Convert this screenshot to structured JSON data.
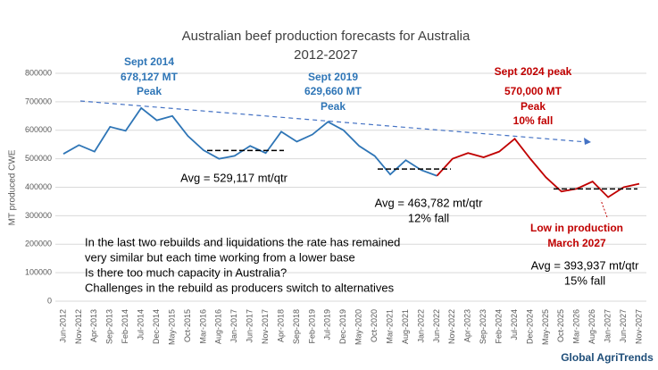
{
  "chart_data": {
    "type": "line",
    "title": "Australian beef production forecasts for Australia",
    "subtitle": "2012-2027",
    "ylabel": "MT produced CWE",
    "categories": [
      "Jun-2012",
      "Nov-2012",
      "Apr-2013",
      "Sep-2013",
      "Feb-2014",
      "Jul-2014",
      "Dec-2014",
      "May-2015",
      "Oct-2015",
      "Mar-2016",
      "Aug-2016",
      "Jan-2017",
      "Jun-2017",
      "Nov-2017",
      "Apr-2018",
      "Sep-2018",
      "Feb-2019",
      "Jul-2019",
      "Dec-2019",
      "May-2020",
      "Oct-2020",
      "Mar-2021",
      "Aug-2021",
      "Jan-2022",
      "Jun-2022",
      "Nov-2022",
      "Apr-2023",
      "Sep-2023",
      "Feb-2024",
      "Jul-2024",
      "Dec-2024",
      "May-2025",
      "Oct-2025",
      "Mar-2026",
      "Aug-2026",
      "Jan-2027",
      "Jun-2027",
      "Nov-2027"
    ],
    "series": [
      {
        "color": "#2e75b6",
        "values": [
          517000,
          548000,
          525000,
          612000,
          598000,
          678127,
          635000,
          650000,
          580000,
          530000,
          500000,
          510000,
          545000,
          520000,
          595000,
          560000,
          585000,
          629660,
          600000,
          545000,
          510000,
          445000,
          495000,
          460000,
          440000,
          null,
          null,
          null,
          null,
          null,
          null,
          null,
          null,
          null,
          null,
          null,
          null,
          null
        ]
      },
      {
        "color": "#c00000",
        "values": [
          null,
          null,
          null,
          null,
          null,
          null,
          null,
          null,
          null,
          null,
          null,
          null,
          null,
          null,
          null,
          null,
          null,
          null,
          null,
          null,
          null,
          null,
          null,
          null,
          440000,
          500000,
          520000,
          505000,
          525000,
          570000,
          500000,
          435000,
          385000,
          395000,
          420000,
          365000,
          400000,
          412000
        ]
      }
    ],
    "ylim": [
      0,
      820000
    ],
    "yticks": [
      0,
      100000,
      200000,
      300000,
      400000,
      500000,
      600000,
      700000,
      800000
    ],
    "grid": true,
    "reference_lines": [
      {
        "value": 529117
      },
      {
        "value": 463782
      },
      {
        "value": 393937
      }
    ],
    "annotations": [
      {
        "text": "Sept 2014",
        "color": "#2e75b6"
      },
      {
        "text": "678,127 MT",
        "color": "#2e75b6"
      },
      {
        "text": "Peak",
        "color": "#2e75b6"
      },
      {
        "text": "Sept 2019",
        "color": "#2e75b6"
      },
      {
        "text": "629,660 MT",
        "color": "#2e75b6"
      },
      {
        "text": "Peak",
        "color": "#2e75b6"
      },
      {
        "text": "Sept 2024 peak",
        "color": "#c00000"
      },
      {
        "text": "570,000 MT",
        "color": "#c00000"
      },
      {
        "text": "Peak",
        "color": "#c00000"
      },
      {
        "text": "10% fall",
        "color": "#c00000"
      },
      {
        "text": "Avg = 529,117 mt/qtr",
        "color": "#000000"
      },
      {
        "text": "Avg = 463,782 mt/qtr",
        "color": "#000000"
      },
      {
        "text": "12% fall",
        "color": "#000000"
      },
      {
        "text": "Low in production",
        "color": "#c00000"
      },
      {
        "text": "March 2027",
        "color": "#c00000"
      },
      {
        "text": "Avg = 393,937 mt/qtr",
        "color": "#000000"
      },
      {
        "text": "15% fall",
        "color": "#000000"
      }
    ],
    "notes": [
      "In the last two rebuilds and liquidations the rate has remained",
      "very similar but each time working from a lower base",
      "Is there too much capacity in Australia?",
      "Challenges in the rebuild as producers switch to alternatives"
    ],
    "logo": "Global AgriTrends"
  }
}
